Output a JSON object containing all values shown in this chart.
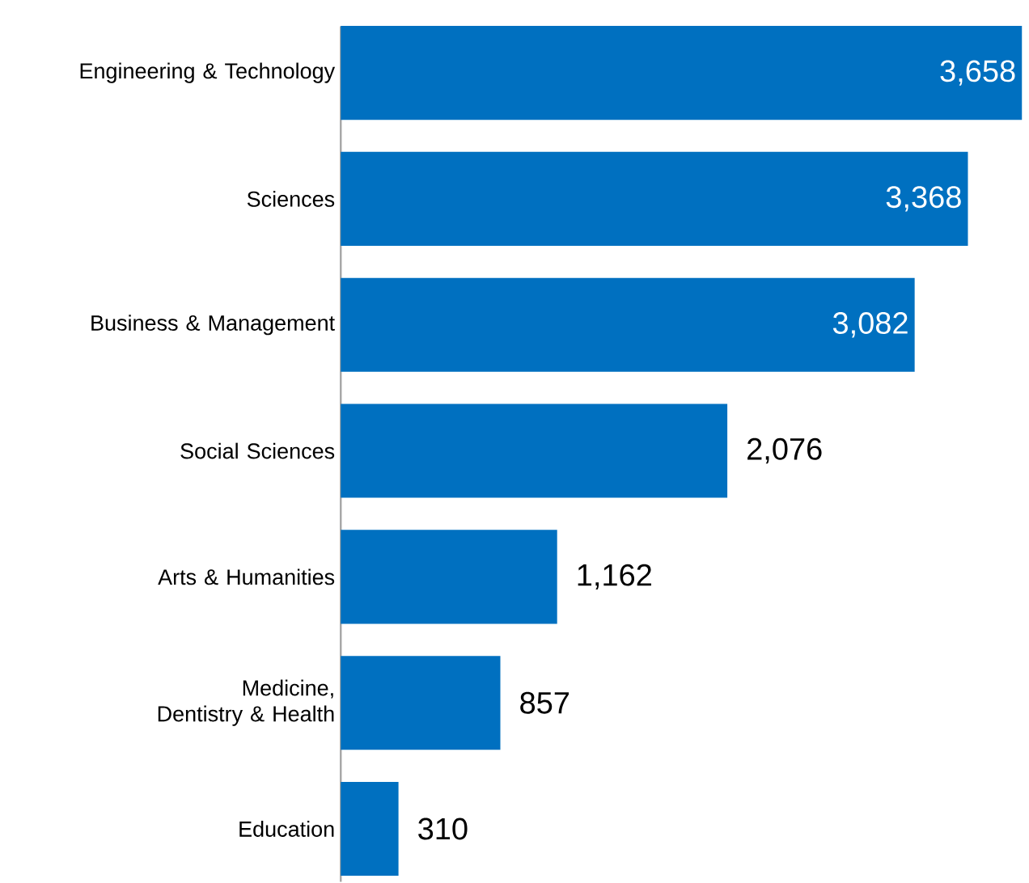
{
  "chart_data": {
    "type": "bar",
    "orientation": "horizontal",
    "categories": [
      "Engineering & Technology",
      "Sciences",
      "Business & Management",
      "Social Sciences",
      "Arts & Humanities",
      "Medicine, Dentistry & Health",
      "Education"
    ],
    "values": [
      3658,
      3368,
      3082,
      2076,
      1162,
      857,
      310
    ],
    "value_labels": [
      "3,658",
      "3,368",
      "3,082",
      "2,076",
      "1,162",
      "857",
      "310"
    ],
    "color": "#0070c0"
  }
}
